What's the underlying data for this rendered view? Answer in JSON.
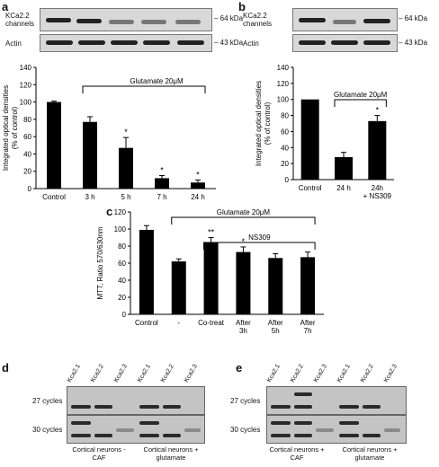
{
  "panels": {
    "a": {
      "label": "a",
      "blot": {
        "row1": "KCa2.2 channels",
        "row2": "Actin",
        "kda1": "– 64 kDa",
        "kda2": "– 43 kDa"
      }
    },
    "b": {
      "label": "b",
      "blot": {
        "row1": "KCa2.2 channels",
        "row2": "Actin",
        "kda1": "– 64 kDa",
        "kda2": "– 43 kDa"
      }
    },
    "c": {
      "label": "c"
    },
    "d": {
      "label": "d",
      "lanes": [
        "Kca2.1",
        "Kca2.2",
        "Kca2.3",
        "Kca2.1",
        "Kca2.2",
        "Kca2.3"
      ],
      "rows": [
        "27 cycles",
        "30 cycles"
      ],
      "groups": [
        "Cortical neurons - CAF",
        "Cortical neurons + glutamate"
      ]
    },
    "e": {
      "label": "e",
      "lanes": [
        "Kca2.1",
        "Kca2.2",
        "Kca2.3",
        "Kca2.1",
        "Kca2.2",
        "Kca2.3"
      ],
      "rows": [
        "27 cycles",
        "30 cycles"
      ],
      "groups": [
        "Cortical neurons + CAF",
        "Cortical neurons + glutamate"
      ]
    }
  },
  "chart_data": [
    {
      "type": "bar",
      "id": "a",
      "categories": [
        "Control",
        "3 h",
        "5 h",
        "7 h",
        "24 h"
      ],
      "values": [
        100,
        77,
        47,
        12,
        7
      ],
      "errors": [
        1,
        6,
        12,
        3,
        3
      ],
      "significance": [
        "",
        "",
        "*",
        "*",
        "*"
      ],
      "ylabel": "Integrated optical densities (% of control)",
      "ylim": [
        0,
        140
      ],
      "yticks": [
        0,
        20,
        40,
        60,
        80,
        100,
        120,
        140
      ],
      "bracket_label": "Glutamate 20μM"
    },
    {
      "type": "bar",
      "id": "b",
      "categories": [
        "Control",
        "24 h",
        "24h + NS309"
      ],
      "values": [
        100,
        28,
        73
      ],
      "errors": [
        0,
        6,
        7
      ],
      "significance": [
        "",
        "",
        "*"
      ],
      "ylabel": "Integrated optical densities (% of control)",
      "ylim": [
        0,
        140
      ],
      "yticks": [
        0,
        20,
        40,
        60,
        80,
        100,
        120,
        140
      ],
      "bracket_label": "Glutamate 20μM"
    },
    {
      "type": "bar",
      "id": "c",
      "categories": [
        "Control",
        "-",
        "Co-treat",
        "After 3h",
        "After 5h",
        "After 7h"
      ],
      "values": [
        99,
        62,
        84,
        73,
        66,
        67
      ],
      "errors": [
        5,
        3,
        6,
        6,
        5,
        6
      ],
      "significance": [
        "",
        "",
        "**",
        "*",
        "",
        ""
      ],
      "ylabel": "MTT, Ratio 570/630nm",
      "ylim": [
        0,
        120
      ],
      "yticks": [
        0,
        20,
        40,
        60,
        80,
        100,
        120
      ],
      "bracket_labels": [
        "Glutamate 20μM",
        "NS309"
      ]
    }
  ]
}
